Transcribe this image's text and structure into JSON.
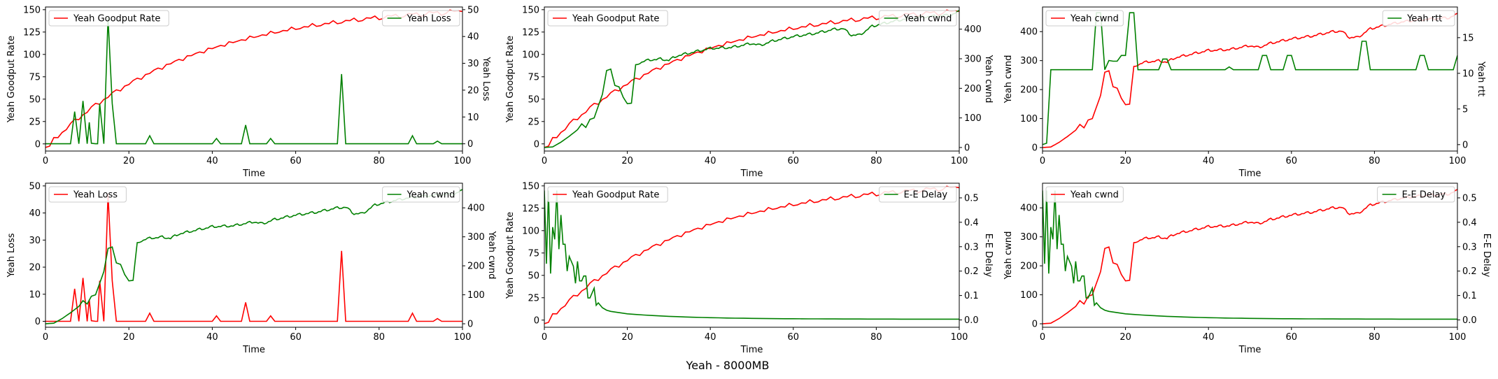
{
  "figure": {
    "suptitle": "Yeah - 8000MB"
  },
  "chart_data": [
    {
      "type": "line",
      "xlabel": "Time",
      "xlim": [
        0,
        100
      ],
      "x_ticks": [
        0,
        20,
        40,
        60,
        80,
        100
      ],
      "left": {
        "ylabel": "Yeah Goodput Rate",
        "ylim": [
          -8,
          153
        ],
        "ticks": [
          0,
          25,
          50,
          75,
          100,
          125,
          150
        ]
      },
      "right": {
        "ylabel": "Yeah Loss",
        "ylim": [
          -2.7,
          51
        ],
        "ticks": [
          0,
          10,
          20,
          30,
          40,
          50
        ]
      },
      "legend_left": "upper-left",
      "legend_right": "upper-right",
      "series": [
        {
          "name": "Yeah Goodput Rate",
          "axis": "left",
          "color": "#ff0000",
          "kind": "goodput",
          "final": 148
        },
        {
          "name": "Yeah Loss",
          "axis": "right",
          "color": "#008000",
          "kind": "loss"
        }
      ]
    },
    {
      "type": "line",
      "xlabel": "Time",
      "xlim": [
        0,
        100
      ],
      "x_ticks": [
        0,
        20,
        40,
        60,
        80,
        100
      ],
      "left": {
        "ylabel": "Yeah Goodput Rate",
        "ylim": [
          -8,
          153
        ],
        "ticks": [
          0,
          25,
          50,
          75,
          100,
          125,
          150
        ]
      },
      "right": {
        "ylabel": "Yeah cwnd",
        "ylim": [
          -12,
          475
        ],
        "ticks": [
          0,
          100,
          200,
          300,
          400
        ]
      },
      "legend_left": "upper-left",
      "legend_right": "upper-right",
      "series": [
        {
          "name": "Yeah Goodput Rate",
          "axis": "left",
          "color": "#ff0000",
          "kind": "goodput",
          "final": 148
        },
        {
          "name": "Yeah cwnd",
          "axis": "right",
          "color": "#008000",
          "kind": "cwnd"
        }
      ]
    },
    {
      "type": "line",
      "xlabel": "Time",
      "xlim": [
        0,
        100
      ],
      "x_ticks": [
        0,
        20,
        40,
        60,
        80,
        100
      ],
      "left": {
        "ylabel": "Yeah cwnd",
        "ylim": [
          -12,
          485
        ],
        "ticks": [
          0,
          100,
          200,
          300,
          400
        ]
      },
      "right": {
        "ylabel": "Yeah rtt",
        "ylim": [
          -0.9,
          19.3
        ],
        "ticks": [
          0,
          5,
          10,
          15
        ]
      },
      "legend_left": "upper-left",
      "legend_right": "upper-right",
      "series": [
        {
          "name": "Yeah cwnd",
          "axis": "left",
          "color": "#ff0000",
          "kind": "cwnd"
        },
        {
          "name": "Yeah rtt",
          "axis": "right",
          "color": "#008000",
          "kind": "rtt"
        }
      ]
    },
    {
      "type": "line",
      "xlabel": "Time",
      "xlim": [
        0,
        100
      ],
      "x_ticks": [
        0,
        20,
        40,
        60,
        80,
        100
      ],
      "left": {
        "ylabel": "Yeah Loss",
        "ylim": [
          -2.2,
          51
        ],
        "ticks": [
          0,
          10,
          20,
          30,
          40,
          50
        ]
      },
      "right": {
        "ylabel": "Yeah cwnd",
        "ylim": [
          -12,
          485
        ],
        "ticks": [
          0,
          100,
          200,
          300,
          400
        ]
      },
      "legend_left": "upper-left",
      "legend_right": "upper-right",
      "series": [
        {
          "name": "Yeah Loss",
          "axis": "left",
          "color": "#ff0000",
          "kind": "loss"
        },
        {
          "name": "Yeah cwnd",
          "axis": "right",
          "color": "#008000",
          "kind": "cwnd"
        }
      ]
    },
    {
      "type": "line",
      "xlabel": "Time",
      "xlim": [
        0,
        100
      ],
      "x_ticks": [
        0,
        20,
        40,
        60,
        80,
        100
      ],
      "left": {
        "ylabel": "Yeah Goodput Rate",
        "ylim": [
          -8,
          153
        ],
        "ticks": [
          0,
          25,
          50,
          75,
          100,
          125,
          150
        ]
      },
      "right": {
        "ylabel": "E-E Delay",
        "ylim": [
          -0.03,
          0.56
        ],
        "ticks": [
          0.0,
          0.1,
          0.2,
          0.3,
          0.4,
          0.5
        ]
      },
      "legend_left": "upper-left",
      "legend_right": "upper-right",
      "series": [
        {
          "name": "Yeah Goodput Rate",
          "axis": "left",
          "color": "#ff0000",
          "kind": "goodput",
          "final": 148
        },
        {
          "name": "E-E Delay",
          "axis": "right",
          "color": "#008000",
          "kind": "delay"
        }
      ]
    },
    {
      "type": "line",
      "xlabel": "Time",
      "xlim": [
        0,
        100
      ],
      "x_ticks": [
        0,
        20,
        40,
        60,
        80,
        100
      ],
      "left": {
        "ylabel": "Yeah cwnd",
        "ylim": [
          -12,
          485
        ],
        "ticks": [
          0,
          100,
          200,
          300,
          400
        ]
      },
      "right": {
        "ylabel": "E-E Delay",
        "ylim": [
          -0.03,
          0.56
        ],
        "ticks": [
          0.0,
          0.1,
          0.2,
          0.3,
          0.4,
          0.5
        ]
      },
      "legend_left": "upper-left",
      "legend_right": "upper-right",
      "series": [
        {
          "name": "Yeah cwnd",
          "axis": "left",
          "color": "#ff0000",
          "kind": "cwnd"
        },
        {
          "name": "E-E Delay",
          "axis": "right",
          "color": "#008000",
          "kind": "delay"
        }
      ]
    }
  ]
}
